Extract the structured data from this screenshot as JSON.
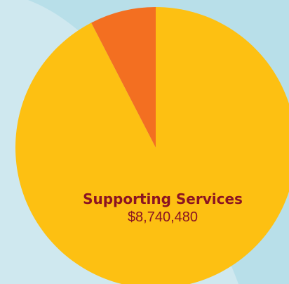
{
  "chart_data": {
    "type": "pie",
    "title": "",
    "slices": [
      {
        "label": "Supporting Services",
        "value_text": "$8,740,480",
        "fraction": 0.924,
        "color": "#fdc012"
      },
      {
        "label": "",
        "value_text": "",
        "fraction": 0.076,
        "color": "#f36f21"
      }
    ]
  },
  "colors": {
    "background": "#cfe8ef",
    "background_band": "#b8dfe9",
    "label_text": "#8b1422"
  }
}
